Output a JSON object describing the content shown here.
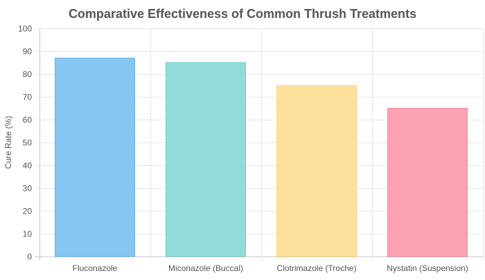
{
  "chart_data": {
    "type": "bar",
    "title": "Comparative Effectiveness of Common Thrush Treatments",
    "xlabel": "",
    "ylabel": "Cure Rate (%)",
    "ylim": [
      0,
      100
    ],
    "yticks": [
      0,
      10,
      20,
      30,
      40,
      50,
      60,
      70,
      80,
      90,
      100
    ],
    "categories": [
      "Fluconazole",
      "Miconazole (Buccal)",
      "Clotrimazole (Troche)",
      "Nystatin (Suspension)"
    ],
    "values": [
      87,
      85,
      75,
      65
    ],
    "bar_fill_colors": [
      "#87c6f3",
      "#93dbd9",
      "#fde09c",
      "#fca3b3"
    ],
    "bar_stroke_colors": [
      "#36a2eb",
      "#4bc0c0",
      "#ffce56",
      "#ff6384"
    ],
    "grid": true,
    "legend": "none"
  }
}
